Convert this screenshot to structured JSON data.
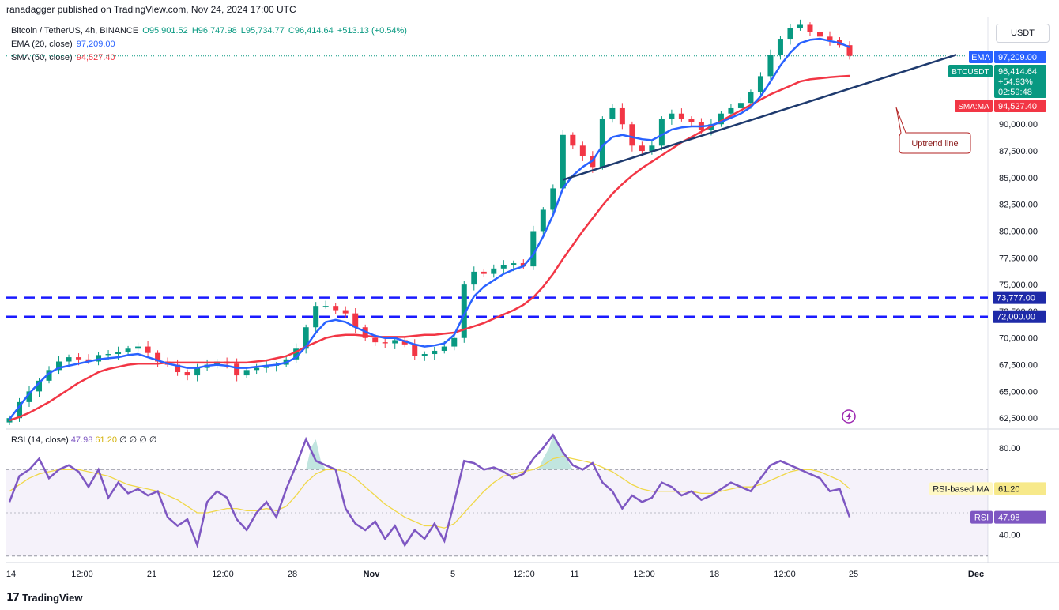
{
  "header": {
    "published": "ranadagger published on TradingView.com, Nov 24, 2024 17:00 UTC"
  },
  "legend": {
    "symbol": "Bitcoin / TetherUS, 4h, BINANCE",
    "open": "O95,901.52",
    "high": "H96,747.98",
    "low": "L95,734.77",
    "close": "C96,414.64",
    "change": "+513.13 (+0.54%)",
    "ema_label": "EMA (20, close)",
    "ema_value": "97,209.00",
    "sma_label": "SMA (50, close)",
    "sma_value": "94,527.40"
  },
  "rsi_legend": {
    "label": "RSI (14, close)",
    "value": "47.98",
    "ma_value": "61.20",
    "extra": "∅ ∅ ∅ ∅"
  },
  "currency": "USDT",
  "footer": {
    "brand": "TradingView"
  },
  "colors": {
    "up": "#089981",
    "down": "#f23645",
    "ema": "#2962ff",
    "sma": "#f23645",
    "trend": "#1e3a6e",
    "level": "#1a1aff",
    "rsi": "#7e57c2",
    "rsi_ma": "#f0d84a"
  },
  "chart_data": [
    {
      "type": "line",
      "title": "Bitcoin / TetherUS, 4h, BINANCE",
      "xlabel": "",
      "ylabel": "",
      "x_ticks": [
        "14",
        "12:00",
        "21",
        "12:00",
        "28",
        "Nov",
        "5",
        "12:00",
        "11",
        "12:00",
        "18",
        "12:00",
        "25",
        "Dec"
      ],
      "y_ticks": [
        "62,500.00",
        "65,000.00",
        "67,500.00",
        "70,000.00",
        "72,500.00",
        "75,000.00",
        "77,500.00",
        "80,000.00",
        "82,500.00",
        "85,000.00",
        "87,500.00",
        "90,000.00"
      ],
      "ylim": [
        61700,
        100000
      ],
      "series": [
        {
          "name": "BTCUSDT",
          "values": [
            62500,
            64000,
            65000,
            66000,
            67000,
            67800,
            68200,
            68000,
            67800,
            68400,
            68500,
            68700,
            69000,
            69200,
            68600,
            67800,
            67500,
            66800,
            66500,
            67200,
            67500,
            67800,
            67600,
            66500,
            67000,
            67200,
            67400,
            67500,
            68000,
            69000,
            71000,
            73000,
            73000,
            72600,
            72300,
            71000,
            70000,
            69600,
            69500,
            69800,
            69400,
            68300,
            68500,
            68800,
            69200,
            70000,
            75000,
            76200,
            76000,
            76500,
            76800,
            77000,
            76700,
            80000,
            82000,
            84000,
            89000,
            88000,
            87000,
            86000,
            90500,
            91500,
            90000,
            88000,
            87500,
            88000,
            90500,
            91000,
            90500,
            90200,
            89500,
            90000,
            91000,
            91500,
            92000,
            93000,
            94500,
            96500,
            98000,
            99000,
            99300,
            98600,
            98200,
            97900,
            97400,
            96400
          ]
        },
        {
          "name": "EMA",
          "values": [
            62400,
            63600,
            64800,
            65800,
            66700,
            67200,
            67400,
            67600,
            67800,
            68000,
            68100,
            68200,
            68400,
            68500,
            68200,
            67900,
            67600,
            67400,
            67200,
            67200,
            67400,
            67500,
            67400,
            67200,
            67200,
            67300,
            67400,
            67500,
            67700,
            68200,
            69200,
            70500,
            71500,
            71700,
            71500,
            71000,
            70600,
            70200,
            70000,
            70000,
            69700,
            69400,
            69200,
            69300,
            69500,
            70300,
            72200,
            73900,
            74800,
            75400,
            76000,
            76400,
            76700,
            77800,
            79500,
            81500,
            84000,
            85200,
            86000,
            86600,
            88000,
            88800,
            89000,
            88800,
            88600,
            88500,
            89000,
            89500,
            89700,
            89800,
            89800,
            89900,
            90200,
            90600,
            91000,
            91600,
            92600,
            94000,
            95500,
            96700,
            97600,
            97900,
            98000,
            97800,
            97600,
            97209
          ]
        },
        {
          "name": "SMA",
          "values": [
            62300,
            62600,
            63000,
            63500,
            64000,
            64600,
            65200,
            65800,
            66300,
            66800,
            67100,
            67300,
            67500,
            67600,
            67600,
            67600,
            67700,
            67700,
            67700,
            67700,
            67700,
            67700,
            67700,
            67700,
            67700,
            67800,
            67900,
            68100,
            68300,
            68700,
            69200,
            69600,
            70000,
            70200,
            70300,
            70300,
            70200,
            70100,
            70100,
            70100,
            70100,
            70200,
            70300,
            70300,
            70400,
            70500,
            70800,
            71100,
            71400,
            71800,
            72200,
            72600,
            73100,
            73800,
            74800,
            76000,
            77400,
            78700,
            80000,
            81200,
            82400,
            83500,
            84400,
            85200,
            85900,
            86500,
            87100,
            87700,
            88300,
            88800,
            89300,
            89800,
            90300,
            90800,
            91300,
            91800,
            92300,
            92800,
            93200,
            93600,
            94000,
            94200,
            94300,
            94400,
            94470,
            94527
          ]
        }
      ],
      "levels": [
        73777,
        72000
      ],
      "level_labels": [
        "73,777.00",
        "72,000.00"
      ],
      "annotation": "Uptrend line",
      "last_labels": {
        "ema_tag": "EMA",
        "ema_price": "97,209.00",
        "sym_tag": "BTCUSDT",
        "sym_price": "96,414.64",
        "sym_change": "+54.93%",
        "sym_time": "02:59:48",
        "sma_tag": "SMA:MA",
        "sma_price": "94,527.40"
      }
    },
    {
      "type": "line",
      "title": "RSI (14, close)",
      "ylim": [
        27,
        88
      ],
      "y_ticks": [
        "80.00",
        "40.00"
      ],
      "bands": [
        70,
        30
      ],
      "series": [
        {
          "name": "RSI",
          "values": [
            55,
            67,
            70,
            75,
            66,
            70,
            72,
            69,
            62,
            70,
            57,
            64,
            59,
            61,
            58,
            60,
            48,
            44,
            47,
            35,
            55,
            60,
            57,
            47,
            42,
            50,
            55,
            48,
            61,
            72,
            84,
            74,
            72,
            70,
            52,
            45,
            42,
            46,
            38,
            44,
            35,
            42,
            38,
            45,
            37,
            55,
            74,
            73,
            70,
            71,
            69,
            66,
            68,
            75,
            80,
            86,
            78,
            72,
            70,
            73,
            64,
            60,
            52,
            58,
            55,
            57,
            64,
            62,
            58,
            60,
            56,
            58,
            61,
            64,
            62,
            60,
            66,
            72,
            74,
            72,
            70,
            68,
            66,
            60,
            61,
            48
          ]
        },
        {
          "name": "RSI-based MA",
          "values": [
            60,
            63,
            66,
            68,
            69,
            70,
            70,
            70,
            69,
            68,
            67,
            65,
            63,
            62,
            61,
            60,
            58,
            56,
            53,
            50,
            50,
            51,
            52,
            52,
            51,
            51,
            52,
            51,
            53,
            58,
            64,
            68,
            70,
            70,
            69,
            66,
            62,
            58,
            54,
            51,
            48,
            46,
            44,
            44,
            43,
            45,
            50,
            55,
            60,
            64,
            67,
            68,
            69,
            70,
            72,
            75,
            76,
            75,
            74,
            73,
            71,
            69,
            66,
            63,
            61,
            60,
            60,
            60,
            60,
            60,
            59,
            59,
            60,
            61,
            62,
            62,
            63,
            65,
            67,
            69,
            70,
            70,
            69,
            67,
            65,
            61.2
          ]
        }
      ],
      "ma_tag": "RSI-based MA",
      "ma_price": "61.20",
      "rsi_tag": "RSI",
      "rsi_price": "47.98"
    }
  ]
}
